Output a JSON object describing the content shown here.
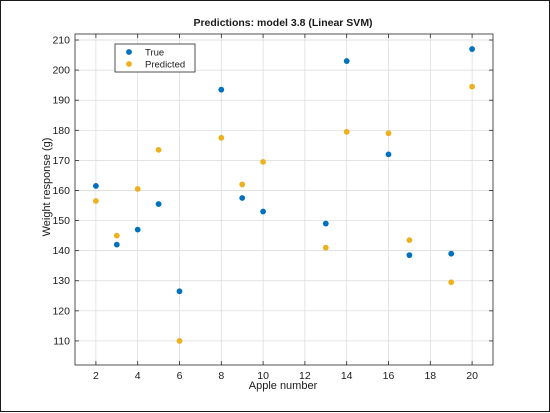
{
  "chart_data": {
    "type": "scatter",
    "title": "Predictions: model 3.8 (Linear SVM)",
    "xlabel": "Apple number",
    "ylabel": "Weight response (g)",
    "xlim": [
      1,
      21
    ],
    "ylim": [
      102,
      212
    ],
    "xticks": [
      2,
      4,
      6,
      8,
      10,
      12,
      14,
      16,
      18,
      20
    ],
    "yticks": [
      110,
      120,
      130,
      140,
      150,
      160,
      170,
      180,
      190,
      200,
      210
    ],
    "grid": true,
    "legend_position": "top-left",
    "series": [
      {
        "name": "True",
        "color": "#0072BD",
        "points": [
          {
            "x": 2,
            "y": 161.5
          },
          {
            "x": 3,
            "y": 142
          },
          {
            "x": 4,
            "y": 147
          },
          {
            "x": 5,
            "y": 155.5
          },
          {
            "x": 6,
            "y": 126.5
          },
          {
            "x": 8,
            "y": 193.5
          },
          {
            "x": 9,
            "y": 157.5
          },
          {
            "x": 10,
            "y": 153
          },
          {
            "x": 13,
            "y": 149
          },
          {
            "x": 14,
            "y": 203
          },
          {
            "x": 16,
            "y": 172
          },
          {
            "x": 17,
            "y": 138.5
          },
          {
            "x": 19,
            "y": 139
          },
          {
            "x": 20,
            "y": 207
          }
        ]
      },
      {
        "name": "Predicted",
        "color": "#EDB120",
        "points": [
          {
            "x": 2,
            "y": 156.5
          },
          {
            "x": 3,
            "y": 145
          },
          {
            "x": 4,
            "y": 160.5
          },
          {
            "x": 5,
            "y": 173.5
          },
          {
            "x": 6,
            "y": 110
          },
          {
            "x": 8,
            "y": 177.5
          },
          {
            "x": 9,
            "y": 162
          },
          {
            "x": 10,
            "y": 169.5
          },
          {
            "x": 13,
            "y": 141
          },
          {
            "x": 14,
            "y": 179.5
          },
          {
            "x": 16,
            "y": 179
          },
          {
            "x": 17,
            "y": 143.5
          },
          {
            "x": 19,
            "y": 129.5
          },
          {
            "x": 20,
            "y": 194.5
          }
        ]
      }
    ]
  }
}
